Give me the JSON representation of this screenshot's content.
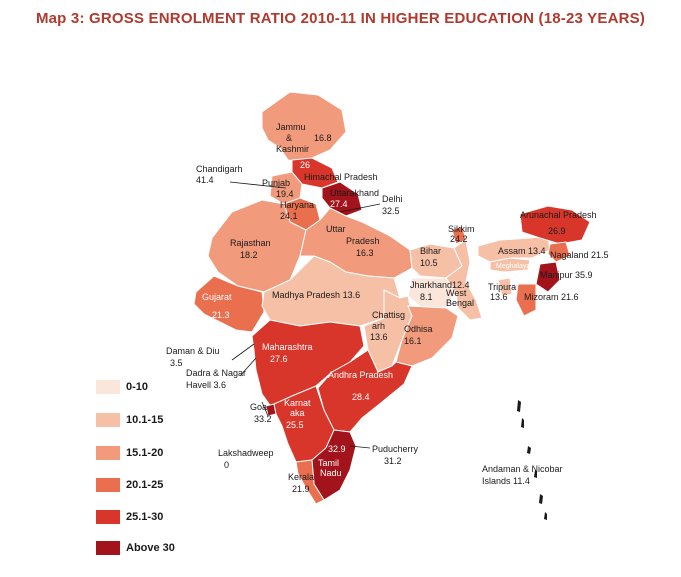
{
  "title": "Map 3: GROSS ENROLMENT RATIO 2010-11 IN HIGHER EDUCATION (18-23 YEARS)",
  "legend": [
    {
      "label": "0-10",
      "color": "#fbe6dc"
    },
    {
      "label": "10.1-15",
      "color": "#f6c0a6"
    },
    {
      "label": "15.1-20",
      "color": "#f19a7c"
    },
    {
      "label": "20.1-25",
      "color": "#ea6f4e"
    },
    {
      "label": "25.1-30",
      "color": "#d9362b"
    },
    {
      "label": "Above 30",
      "color": "#a3131b"
    }
  ],
  "states": {
    "jk_name": "Jammu & Kashmir",
    "jk_val": "16.8",
    "hp_name": "Himachal Pradesh",
    "hp_val": "26",
    "pb_name": "Punjab",
    "pb_val": "19.4",
    "ch_name": "Chandigarh",
    "ch_val": "41.4",
    "uk_name": "Uttarakhand",
    "uk_val": "27.4",
    "hr_name": "Haryana",
    "hr_val": "24.1",
    "dl_name": "Delhi",
    "dl_val": "32.5",
    "rj_name": "Rajasthan",
    "rj_val": "18.2",
    "up_name": "Uttar Pradesh",
    "up_val": "16.3",
    "gj_name": "Gujarat",
    "gj_val": "21.3",
    "mp_name": "Madhya Pradesh",
    "mp_val": "13.6",
    "br_name": "Bihar",
    "br_val": "10.5",
    "jh_name": "Jharkhand",
    "jh_val": "8.1",
    "wb_name": "West Bengal",
    "wb_val": "12.4",
    "sk_name": "Sikkim",
    "sk_val": "24.2",
    "as_name": "Assam",
    "as_val": "13.4",
    "ml_name": "Meghalaya",
    "ar_name": "Arunachal Pradesh",
    "ar_val": "26.9",
    "nl_name": "Nagaland",
    "nl_val": "21.5",
    "mn_name": "Manipur",
    "mn_val": "35.9",
    "mz_name": "Mizoram",
    "mz_val": "21.6",
    "tr_name": "Tripura",
    "tr_val": "13.6",
    "cg_name": "Chattisgarh",
    "cg_val": "13.6",
    "od_name": "Odhisa",
    "od_val": "16.1",
    "mh_name": "Maharashtra",
    "mh_val": "27.6",
    "ap_name": "Andhra Pradesh",
    "ap_val": "28.4",
    "ka_name": "Karnataka",
    "ka_val": "25.5",
    "ga_name": "Goa",
    "ga_val": "33.2",
    "kl_name": "Kerala",
    "kl_val": "21.9",
    "tn_name": "Tamil Nadu",
    "tn_val": "32.9",
    "py_name": "Puducherry",
    "py_val": "31.2",
    "dd_name": "Daman & Diu",
    "dd_val": "3.5",
    "dn_name": "Dadra & Nagar Havell",
    "dn_val": "3.6",
    "ld_name": "Lakshadweep",
    "ld_val": "0",
    "an_name": "Andaman & Nicobar Islands",
    "an_val": "11.4"
  }
}
